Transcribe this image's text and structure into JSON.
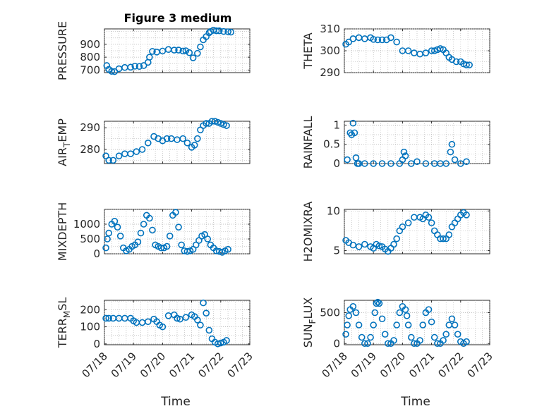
{
  "chart_data": [
    {
      "id": "pressure",
      "type": "scatter",
      "title": "Figure 3 medium",
      "ylabel": "PRESSURE",
      "ylim": [
        680,
        1020
      ],
      "yticks": [
        700,
        800,
        900
      ],
      "xlim": [
        0,
        5
      ],
      "show_xticklabels": false,
      "series": [
        {
          "x": [
            0.08,
            0.15,
            0.25,
            0.35,
            0.5,
            0.7,
            0.9,
            1.05,
            1.2,
            1.35,
            1.5,
            1.55,
            1.65,
            1.8,
            2.0,
            2.2,
            2.4,
            2.55,
            2.7,
            2.8,
            2.92,
            3.05,
            3.2,
            3.3,
            3.4,
            3.5,
            3.6,
            3.65,
            3.75,
            3.85,
            3.95,
            4.1,
            4.25,
            4.35
          ],
          "y": [
            735,
            705,
            690,
            688,
            710,
            720,
            722,
            730,
            728,
            735,
            760,
            800,
            845,
            840,
            848,
            860,
            855,
            855,
            848,
            850,
            835,
            795,
            830,
            880,
            935,
            960,
            990,
            1000,
            1010,
            1005,
            1005,
            1000,
            998,
            995
          ]
        }
      ]
    },
    {
      "id": "theta",
      "type": "scatter",
      "ylabel": "THETA",
      "ylim": [
        290,
        310
      ],
      "yticks": [
        290,
        300,
        310
      ],
      "xlim": [
        0,
        5
      ],
      "show_xticklabels": false,
      "series": [
        {
          "x": [
            0.05,
            0.15,
            0.3,
            0.5,
            0.7,
            0.9,
            1.0,
            1.15,
            1.3,
            1.45,
            1.6,
            1.8,
            2.0,
            2.2,
            2.4,
            2.6,
            2.8,
            3.0,
            3.1,
            3.2,
            3.3,
            3.4,
            3.5,
            3.6,
            3.7,
            3.85,
            4.0,
            4.1,
            4.2,
            4.3
          ],
          "y": [
            303,
            304,
            305.5,
            306,
            305.5,
            306,
            305.2,
            305,
            305,
            305,
            306,
            304,
            300,
            300,
            299,
            298.5,
            299,
            300,
            300,
            300.5,
            301,
            300.5,
            299,
            297,
            296,
            295,
            295,
            294,
            293.5,
            293.5
          ]
        }
      ]
    },
    {
      "id": "air_temp",
      "type": "scatter",
      "ylabel": "AIR_TEMP",
      "ylim": [
        273.5,
        293
      ],
      "yticks": [
        280,
        290
      ],
      "xlim": [
        0,
        5
      ],
      "show_xticklabels": false,
      "series": [
        {
          "x": [
            0.05,
            0.15,
            0.3,
            0.5,
            0.7,
            0.9,
            1.1,
            1.3,
            1.5,
            1.7,
            1.85,
            2.0,
            2.15,
            2.3,
            2.5,
            2.7,
            2.85,
            3.0,
            3.1,
            3.2,
            3.3,
            3.4,
            3.5,
            3.6,
            3.7,
            3.8,
            3.9,
            4.0,
            4.1,
            4.2
          ],
          "y": [
            277,
            275,
            275,
            277,
            278,
            278,
            279,
            280,
            283,
            286,
            285,
            284,
            285,
            285,
            284.5,
            285,
            283,
            281,
            282,
            285,
            289,
            291,
            292,
            292,
            293,
            293,
            292.5,
            292,
            291.5,
            291
          ]
        }
      ]
    },
    {
      "id": "rainfall",
      "type": "scatter",
      "ylabel": "RAINFALL",
      "ylim": [
        0,
        1.1
      ],
      "yticks": [
        0,
        0.5,
        1
      ],
      "xlim": [
        0,
        5
      ],
      "show_xticklabels": false,
      "series": [
        {
          "x": [
            0.1,
            0.2,
            0.25,
            0.3,
            0.35,
            0.4,
            0.45,
            0.5,
            0.7,
            1.0,
            1.3,
            1.6,
            1.9,
            2.0,
            2.05,
            2.1,
            2.3,
            2.5,
            2.8,
            3.1,
            3.3,
            3.5,
            3.65,
            3.7,
            3.8,
            4.0,
            4.2
          ],
          "y": [
            0.1,
            0.8,
            0.75,
            1.05,
            0.8,
            0.15,
            0,
            0,
            0,
            0,
            0,
            0,
            0,
            0.1,
            0.3,
            0.2,
            0,
            0.05,
            0,
            0,
            0,
            0,
            0.3,
            0.5,
            0.1,
            0,
            0.05
          ]
        }
      ]
    },
    {
      "id": "mixdepth",
      "type": "scatter",
      "ylabel": "MIXDEPTH",
      "ylim": [
        0,
        1500
      ],
      "yticks": [
        0,
        500,
        1000
      ],
      "xlim": [
        0,
        5
      ],
      "show_xticklabels": false,
      "series": [
        {
          "x": [
            0.05,
            0.1,
            0.15,
            0.25,
            0.35,
            0.45,
            0.55,
            0.65,
            0.75,
            0.85,
            0.95,
            1.05,
            1.15,
            1.25,
            1.35,
            1.45,
            1.55,
            1.65,
            1.75,
            1.85,
            1.95,
            2.05,
            2.15,
            2.25,
            2.35,
            2.45,
            2.55,
            2.65,
            2.75,
            2.85,
            2.95,
            3.05,
            3.15,
            3.25,
            3.35,
            3.45,
            3.55,
            3.65,
            3.75,
            3.85,
            3.95,
            4.05,
            4.15,
            4.25
          ],
          "y": [
            200,
            500,
            700,
            1000,
            1100,
            900,
            600,
            200,
            100,
            150,
            250,
            300,
            400,
            700,
            1000,
            1300,
            1200,
            800,
            300,
            250,
            200,
            200,
            250,
            600,
            1300,
            1400,
            900,
            300,
            100,
            80,
            100,
            150,
            300,
            450,
            600,
            650,
            500,
            300,
            200,
            100,
            80,
            50,
            100,
            150
          ]
        }
      ]
    },
    {
      "id": "h2omixra",
      "type": "scatter",
      "ylabel": "H2OMIXRA",
      "ylim": [
        4.6,
        10.2
      ],
      "yticks": [
        5,
        10
      ],
      "xlim": [
        0,
        5
      ],
      "show_xticklabels": false,
      "series": [
        {
          "x": [
            0.05,
            0.15,
            0.3,
            0.5,
            0.7,
            0.9,
            1.0,
            1.1,
            1.2,
            1.3,
            1.4,
            1.5,
            1.6,
            1.7,
            1.8,
            1.9,
            2.0,
            2.2,
            2.4,
            2.6,
            2.7,
            2.8,
            2.9,
            3.0,
            3.1,
            3.2,
            3.3,
            3.4,
            3.5,
            3.6,
            3.7,
            3.8,
            3.9,
            4.0,
            4.1,
            4.2
          ],
          "y": [
            6.3,
            6,
            5.7,
            5.5,
            5.8,
            5.5,
            5.3,
            5.8,
            5.6,
            5.5,
            5.2,
            4.9,
            5.3,
            5.8,
            6.5,
            7.5,
            8,
            8.5,
            9.2,
            9.2,
            9.0,
            9.5,
            9.2,
            8.5,
            7.5,
            7,
            6.5,
            6.5,
            6.5,
            7,
            8,
            8.5,
            9,
            9.5,
            9.8,
            9.5
          ]
        }
      ]
    },
    {
      "id": "terr_msl",
      "type": "scatter",
      "ylabel": "TERR_MSL",
      "ylim": [
        -5,
        255
      ],
      "yticks": [
        0,
        100,
        200
      ],
      "xlim": [
        0,
        5
      ],
      "xticks": [
        0,
        1,
        2,
        3,
        4,
        5
      ],
      "xticklabels": [
        "07/18",
        "07/19",
        "07/20",
        "07/21",
        "07/22",
        "07/23"
      ],
      "xlabel": "Time",
      "series": [
        {
          "x": [
            0.05,
            0.15,
            0.3,
            0.5,
            0.7,
            0.9,
            1.0,
            1.1,
            1.3,
            1.5,
            1.7,
            1.8,
            1.9,
            2.0,
            2.2,
            2.4,
            2.5,
            2.6,
            2.8,
            3.0,
            3.1,
            3.2,
            3.3,
            3.4,
            3.5,
            3.6,
            3.7,
            3.8,
            3.9,
            4.0,
            4.1,
            4.2
          ],
          "y": [
            150,
            150,
            150,
            150,
            150,
            150,
            135,
            125,
            125,
            130,
            145,
            130,
            110,
            100,
            165,
            170,
            150,
            145,
            155,
            170,
            160,
            140,
            110,
            240,
            180,
            80,
            30,
            10,
            0,
            5,
            10,
            20
          ]
        }
      ]
    },
    {
      "id": "sun_flux",
      "type": "scatter",
      "ylabel": "SUN_FLUX",
      "ylim": [
        -20,
        700
      ],
      "yticks": [
        0,
        500
      ],
      "xlim": [
        0,
        5
      ],
      "xticks": [
        0,
        1,
        2,
        3,
        4,
        5
      ],
      "xticklabels": [
        "07/18",
        "07/19",
        "07/20",
        "07/21",
        "07/22",
        "07/23"
      ],
      "xlabel": "Time",
      "series": [
        {
          "x": [
            0.05,
            0.1,
            0.15,
            0.2,
            0.3,
            0.4,
            0.5,
            0.6,
            0.7,
            0.8,
            0.9,
            1.0,
            1.05,
            1.1,
            1.15,
            1.2,
            1.3,
            1.4,
            1.5,
            1.6,
            1.7,
            1.8,
            1.9,
            2.0,
            2.1,
            2.15,
            2.2,
            2.3,
            2.4,
            2.5,
            2.6,
            2.7,
            2.8,
            2.9,
            3.0,
            3.1,
            3.2,
            3.3,
            3.4,
            3.5,
            3.6,
            3.7,
            3.8,
            3.9,
            4.0,
            4.1,
            4.2
          ],
          "y": [
            150,
            300,
            450,
            550,
            600,
            500,
            300,
            100,
            0,
            0,
            100,
            300,
            500,
            650,
            670,
            650,
            400,
            150,
            0,
            0,
            50,
            300,
            500,
            600,
            550,
            450,
            300,
            100,
            0,
            0,
            50,
            300,
            500,
            550,
            350,
            100,
            0,
            0,
            50,
            150,
            300,
            400,
            300,
            150,
            30,
            0,
            30
          ]
        }
      ]
    }
  ]
}
